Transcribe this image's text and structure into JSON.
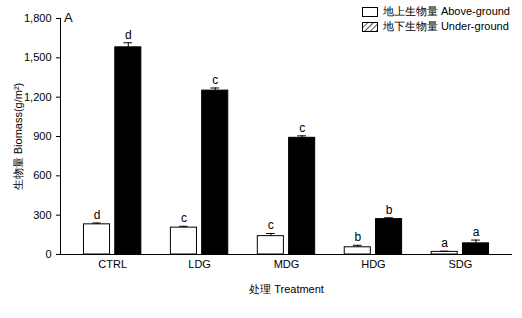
{
  "chart_data": {
    "type": "bar",
    "title": "A",
    "x_label": "处理 Treatment",
    "y_label": "生物量 Biomass(g/m²)",
    "categories": [
      "CTRL",
      "LDG",
      "MDG",
      "HDG",
      "SDG"
    ],
    "series": [
      {
        "name": "地上生物量 Above-ground",
        "color": "#ffffff",
        "values": [
          230,
          205,
          140,
          55,
          20
        ],
        "errors": [
          10,
          10,
          20,
          15,
          5
        ],
        "letters": [
          "d",
          "c",
          "c",
          "b",
          "a"
        ]
      },
      {
        "name": "地下生物量 Under-ground",
        "color": "#000000",
        "values": [
          1580,
          1250,
          890,
          270,
          85
        ],
        "errors": [
          35,
          20,
          15,
          10,
          25
        ],
        "letters": [
          "d",
          "c",
          "c",
          "b",
          "a"
        ]
      }
    ],
    "ylim": [
      0,
      1800
    ],
    "yticks": [
      0,
      300,
      600,
      900,
      1200,
      1500,
      1800
    ],
    "grid": false,
    "legend": "top-right"
  }
}
